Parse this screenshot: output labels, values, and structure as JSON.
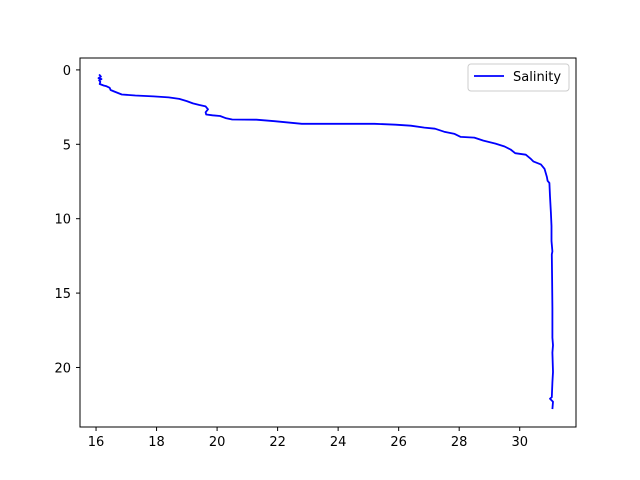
{
  "chart_data": {
    "type": "line",
    "title": "",
    "xlabel": "",
    "ylabel": "",
    "xlim": [
      15.47,
      31.86
    ],
    "ylim": [
      24.0,
      -0.8
    ],
    "y_inverted": true,
    "grid": false,
    "legend_placement": "top-right",
    "x_ticks": [
      16,
      18,
      20,
      22,
      24,
      26,
      28,
      30
    ],
    "y_ticks": [
      0,
      5,
      10,
      15,
      20
    ],
    "series": [
      {
        "name": "Salinity",
        "color": "#0000ff",
        "points": [
          [
            16.1,
            0.3
          ],
          [
            16.16,
            0.45
          ],
          [
            16.08,
            0.55
          ],
          [
            16.18,
            0.62
          ],
          [
            16.1,
            0.7
          ],
          [
            16.14,
            0.8
          ],
          [
            16.12,
            0.95
          ],
          [
            16.25,
            1.05
          ],
          [
            16.35,
            1.1
          ],
          [
            16.45,
            1.2
          ],
          [
            16.48,
            1.35
          ],
          [
            16.6,
            1.45
          ],
          [
            16.85,
            1.65
          ],
          [
            17.3,
            1.72
          ],
          [
            17.9,
            1.78
          ],
          [
            18.4,
            1.85
          ],
          [
            18.75,
            1.95
          ],
          [
            19.0,
            2.1
          ],
          [
            19.2,
            2.25
          ],
          [
            19.4,
            2.35
          ],
          [
            19.62,
            2.45
          ],
          [
            19.7,
            2.65
          ],
          [
            19.62,
            2.85
          ],
          [
            19.64,
            3.0
          ],
          [
            19.85,
            3.05
          ],
          [
            20.1,
            3.1
          ],
          [
            20.3,
            3.25
          ],
          [
            20.5,
            3.33
          ],
          [
            21.3,
            3.35
          ],
          [
            21.9,
            3.45
          ],
          [
            22.8,
            3.62
          ],
          [
            24.0,
            3.62
          ],
          [
            25.2,
            3.62
          ],
          [
            25.9,
            3.68
          ],
          [
            26.4,
            3.75
          ],
          [
            26.85,
            3.88
          ],
          [
            27.2,
            3.95
          ],
          [
            27.5,
            4.15
          ],
          [
            27.85,
            4.3
          ],
          [
            28.05,
            4.5
          ],
          [
            28.5,
            4.55
          ],
          [
            28.8,
            4.75
          ],
          [
            29.2,
            4.95
          ],
          [
            29.5,
            5.15
          ],
          [
            29.7,
            5.35
          ],
          [
            29.85,
            5.6
          ],
          [
            30.2,
            5.7
          ],
          [
            30.35,
            5.95
          ],
          [
            30.45,
            6.15
          ],
          [
            30.7,
            6.35
          ],
          [
            30.82,
            6.65
          ],
          [
            30.9,
            7.2
          ],
          [
            30.92,
            7.45
          ],
          [
            30.98,
            7.6
          ],
          [
            31.0,
            8.5
          ],
          [
            31.03,
            9.6
          ],
          [
            31.05,
            10.5
          ],
          [
            31.05,
            11.5
          ],
          [
            31.08,
            12.2
          ],
          [
            31.06,
            12.4
          ],
          [
            31.07,
            14.0
          ],
          [
            31.08,
            16.0
          ],
          [
            31.08,
            18.0
          ],
          [
            31.1,
            18.5
          ],
          [
            31.08,
            19.0
          ],
          [
            31.1,
            20.3
          ],
          [
            31.08,
            21.0
          ],
          [
            31.06,
            22.0
          ],
          [
            31.0,
            22.1
          ],
          [
            31.1,
            22.3
          ],
          [
            31.08,
            22.8
          ]
        ]
      }
    ]
  }
}
